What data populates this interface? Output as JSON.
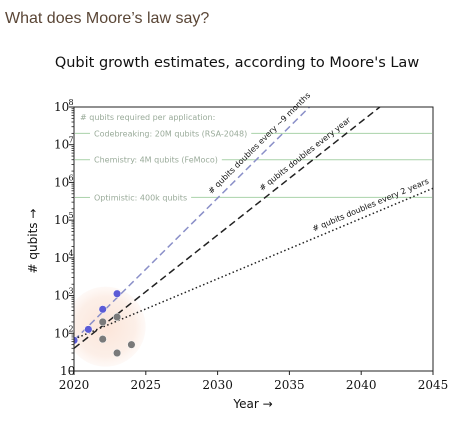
{
  "page": {
    "heading": "What does Moore’s law say?"
  },
  "chart_data": {
    "type": "line",
    "title": "Qubit growth estimates, according to Moore's Law",
    "xlabel": "Year →",
    "ylabel": "# qubits →",
    "xlim": [
      2020,
      2045
    ],
    "ylim": [
      10,
      100000000
    ],
    "yscale": "log",
    "x_ticks": [
      2020,
      2025,
      2030,
      2035,
      2040,
      2045
    ],
    "y_ticks": [
      {
        "base": "10",
        "exp": ""
      },
      {
        "base": "10",
        "exp": "2"
      },
      {
        "base": "10",
        "exp": "3"
      },
      {
        "base": "10",
        "exp": "4"
      },
      {
        "base": "10",
        "exp": "5"
      },
      {
        "base": "10",
        "exp": "6"
      },
      {
        "base": "10",
        "exp": "7"
      },
      {
        "base": "10",
        "exp": "8"
      }
    ],
    "annotation_header": "# qubits required per application:",
    "reference_lines": [
      {
        "label": "Codebreaking: 20M qubits (RSA-2048)",
        "value": 20000000
      },
      {
        "label": "Chemistry: 4M qubits (FeMoco)",
        "value": 4000000
      },
      {
        "label": "Optimistic: 400k qubits",
        "value": 400000
      }
    ],
    "trend_lines": [
      {
        "label": "# qubits doubles every ~9 months",
        "style": "dashed",
        "color": "#8a8fc8",
        "start": [
          2020,
          65
        ],
        "end": [
          2036.4,
          100000000
        ]
      },
      {
        "label": "# qubits doubles every year",
        "style": "dashed",
        "color": "#222222",
        "start": [
          2020,
          40
        ],
        "end": [
          2041.3,
          100000000
        ]
      },
      {
        "label": "# qubits doubles every 2 years",
        "style": "dotted",
        "color": "#222222",
        "start": [
          2020,
          70
        ],
        "end": [
          2045,
          700000
        ]
      }
    ],
    "series": [
      {
        "points": [
          [
            2020,
            65
          ],
          [
            2021,
            127
          ],
          [
            2022,
            433
          ],
          [
            2023,
            1121
          ]
        ],
        "color": "#5b5bd6"
      },
      {
        "points": [
          [
            2022,
            70
          ],
          [
            2022,
            200
          ],
          [
            2023,
            30
          ],
          [
            2023,
            270
          ],
          [
            2024,
            50
          ]
        ],
        "color": "#7a7a7a"
      }
    ],
    "highlight_circle": {
      "center": [
        2022.2,
        150
      ],
      "color": "#fbe6dc"
    },
    "grid": false
  }
}
